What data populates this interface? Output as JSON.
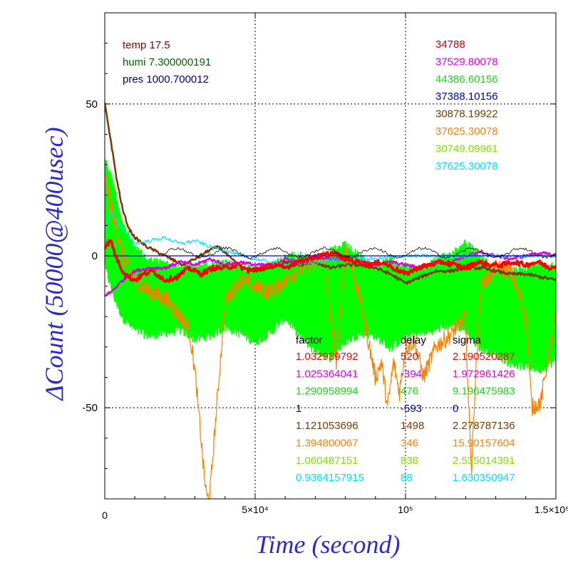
{
  "chart_data": {
    "type": "line",
    "xlabel": "Time (second)",
    "ylabel": "ΔCount (50000@400usec)",
    "xlim": [
      0,
      150000
    ],
    "ylim": [
      -80,
      80
    ],
    "x_ticks": [
      {
        "value": 0,
        "label": "0"
      },
      {
        "value": 50000,
        "label": "5×10⁴"
      },
      {
        "value": 100000,
        "label": "10⁵"
      },
      {
        "value": 150000,
        "label": "1.5×10⁵"
      }
    ],
    "y_ticks": [
      {
        "value": 50,
        "label": "50"
      },
      {
        "value": 0,
        "label": "0"
      },
      {
        "value": -50,
        "label": "-50"
      }
    ],
    "grid": "dotted at labelled ticks",
    "conditions": [
      {
        "text": "temp 17.5",
        "color": "#8b0000"
      },
      {
        "text": "humi 7.300000191",
        "color": "#006400"
      },
      {
        "text": "pres 1000.700012",
        "color": "#00008b"
      }
    ],
    "top_right_values": [
      {
        "text": "34788",
        "color": "#d00000"
      },
      {
        "text": "37529.80078",
        "color": "#e000e0"
      },
      {
        "text": "44386.60156",
        "color": "#20d020"
      },
      {
        "text": "37388.10156",
        "color": "#0000c0"
      },
      {
        "text": "30878.19922",
        "color": "#7a3a00"
      },
      {
        "text": "37625.30078",
        "color": "#ff7f00"
      },
      {
        "text": "30749.09961",
        "color": "#80e000"
      },
      {
        "text": "37625.30078",
        "color": "#00e0ff"
      }
    ],
    "table": {
      "headers": [
        "factor",
        "delay",
        "sigma"
      ],
      "rows": [
        {
          "factor": "1.032939792",
          "delay": "520",
          "sigma": "2.190520287",
          "color": "#ff0000"
        },
        {
          "factor": "1.025364041",
          "delay": "-394",
          "sigma": "1.972961426",
          "color": "#e000e0"
        },
        {
          "factor": "1.290958994",
          "delay": "476",
          "sigma": "9.196475983",
          "color": "#20d020"
        },
        {
          "factor": "1",
          "delay": "-593",
          "sigma": "0",
          "color": "#0000c0"
        },
        {
          "factor": "1.121053696",
          "delay": "1498",
          "sigma": "2.278787136",
          "color": "#7a3a00"
        },
        {
          "factor": "1.394800067",
          "delay": "346",
          "sigma": "15.90157604",
          "color": "#ff7f00"
        },
        {
          "factor": "1.060487151",
          "delay": "838",
          "sigma": "2.535014391",
          "color": "#80e000"
        },
        {
          "factor": "0.9364157915",
          "delay": "88",
          "sigma": "1.630350947",
          "color": "#00e0ff"
        }
      ]
    },
    "series": [
      {
        "color": "#00ff00",
        "style": "band",
        "x": [
          0,
          3000,
          6000,
          10000,
          15000,
          20000,
          25000,
          30000,
          35000,
          40000,
          45000,
          50000,
          55000,
          60000,
          65000,
          70000,
          75000,
          80000,
          85000,
          90000,
          95000,
          100000,
          105000,
          110000,
          115000,
          120000,
          125000,
          130000,
          135000,
          140000,
          145000,
          150000
        ],
        "upper": [
          34,
          25,
          12,
          4,
          0,
          -1,
          -2,
          -2,
          -1,
          -1,
          -2,
          -3,
          -2,
          1,
          2,
          0,
          3,
          5,
          1,
          -2,
          0,
          -2,
          -3,
          0,
          2,
          6,
          1,
          -3,
          -4,
          -2,
          -1,
          -2
        ],
        "lower": [
          -5,
          -15,
          -22,
          -26,
          -28,
          -27,
          -26,
          -29,
          -28,
          -25,
          -27,
          -30,
          -27,
          -22,
          -28,
          -33,
          -35,
          -30,
          -27,
          -28,
          -32,
          -28,
          -27,
          -26,
          -24,
          -26,
          -32,
          -34,
          -37,
          -38,
          -39,
          -36
        ]
      },
      {
        "color": "#ff7f00",
        "style": "thin",
        "x": [
          0,
          3000,
          6000,
          10000,
          15000,
          20000,
          25000,
          28000,
          30000,
          32000,
          33000,
          34000,
          35000,
          36000,
          38000,
          40000,
          45000,
          50000,
          55000,
          60000,
          65000,
          70000,
          73000,
          75000,
          77000,
          80000,
          85000,
          88000,
          90000,
          92000,
          94000,
          96000,
          98000,
          100000,
          103000,
          106000,
          110000,
          115000,
          120000,
          121000,
          122000,
          123000,
          125000,
          130000,
          135000,
          140000,
          142000,
          145000,
          148000,
          150000
        ],
        "upper": [
          26,
          12,
          0,
          -8,
          -12,
          -14,
          -20,
          -24,
          -38,
          -60,
          -72,
          -80,
          -78,
          -65,
          -40,
          -15,
          -8,
          -10,
          -12,
          -8,
          -4,
          -2,
          0,
          -20,
          -35,
          3,
          -15,
          -30,
          -40,
          -35,
          -50,
          -35,
          -45,
          -30,
          -28,
          -40,
          -30,
          -26,
          -20,
          -50,
          -70,
          -45,
          -10,
          -4,
          -5,
          -20,
          -50,
          -48,
          -30,
          -20
        ]
      },
      {
        "color": "#7a3a00",
        "style": "medium",
        "x": [
          0,
          2000,
          4000,
          6000,
          8000,
          10000,
          14000,
          18000,
          22000,
          26000,
          30000,
          35000,
          38000,
          42000,
          46000,
          50000,
          55000,
          60000,
          65000,
          70000,
          75000,
          80000,
          85000,
          90000,
          95000,
          100000,
          105000,
          110000,
          115000,
          120000,
          125000,
          130000,
          135000,
          140000,
          145000,
          150000
        ],
        "upper": [
          50,
          38,
          25,
          15,
          9,
          6,
          3,
          1,
          -1,
          -3,
          -1,
          2,
          3,
          -1,
          -4,
          -5,
          -4,
          -2,
          -3,
          -2,
          -4,
          -3,
          -3,
          -4,
          -6,
          -9,
          -7,
          -5,
          -5,
          -4,
          -4,
          -5,
          -6,
          -6,
          -7,
          -8
        ]
      },
      {
        "color": "#e000e0",
        "style": "medium",
        "x": [
          0,
          2000,
          4000,
          6000,
          10000,
          15000,
          20000,
          25000,
          30000,
          35000,
          40000,
          45000,
          50000,
          55000,
          60000,
          65000,
          70000,
          75000,
          80000,
          85000,
          90000,
          95000,
          100000,
          105000,
          110000,
          115000,
          120000,
          125000,
          130000,
          135000,
          140000,
          145000,
          150000
        ],
        "upper": [
          -13,
          -12,
          -10,
          -8,
          -5,
          -4,
          -4,
          -2,
          -3,
          -1,
          -3,
          -2,
          -3,
          -3,
          -1,
          -2,
          0,
          -1,
          -1,
          -2,
          -3,
          -2,
          -3,
          -4,
          -2,
          -2,
          0,
          1,
          0,
          -1,
          0,
          1,
          0
        ]
      },
      {
        "color": "#00e0ff",
        "style": "thin",
        "x": [
          0,
          2000,
          5000,
          10000,
          15000,
          20000,
          25000,
          30000,
          35000,
          40000,
          45000,
          50000,
          55000,
          60000,
          70000,
          80000,
          90000,
          100000,
          110000,
          120000,
          130000,
          140000,
          150000
        ],
        "upper": [
          8,
          15,
          10,
          4,
          5,
          6,
          4,
          5,
          3,
          2,
          0,
          -1,
          -2,
          -3,
          -2,
          -1,
          -1,
          0,
          0,
          0,
          0,
          0,
          0
        ]
      },
      {
        "color": "#0000c0",
        "style": "thin",
        "x": [
          0,
          150000
        ],
        "upper": [
          0,
          0
        ]
      },
      {
        "color": "#ff0000",
        "style": "thick",
        "x": [
          0,
          2000,
          4000,
          6000,
          8000,
          10000,
          13000,
          16000,
          20000,
          24000,
          28000,
          32000,
          36000,
          40000,
          44000,
          48000,
          52000,
          56000,
          60000,
          64000,
          68000,
          72000,
          76000,
          80000,
          84000,
          88000,
          92000,
          96000,
          100000,
          104000,
          108000,
          112000,
          116000,
          120000,
          124000,
          128000,
          132000,
          136000,
          140000,
          144000,
          148000,
          150000
        ],
        "upper": [
          3,
          5,
          -1,
          -5,
          -7,
          -8,
          -6,
          -5,
          -8,
          -7,
          -4,
          -6,
          -4,
          -4,
          -3,
          -5,
          -4,
          -3,
          -4,
          -2,
          -1,
          0,
          1,
          -1,
          -2,
          -3,
          -2,
          -4,
          -6,
          -4,
          -3,
          -2,
          -3,
          -4,
          -2,
          -3,
          -3,
          -2,
          -3,
          -2,
          -4,
          -3
        ]
      }
    ]
  }
}
